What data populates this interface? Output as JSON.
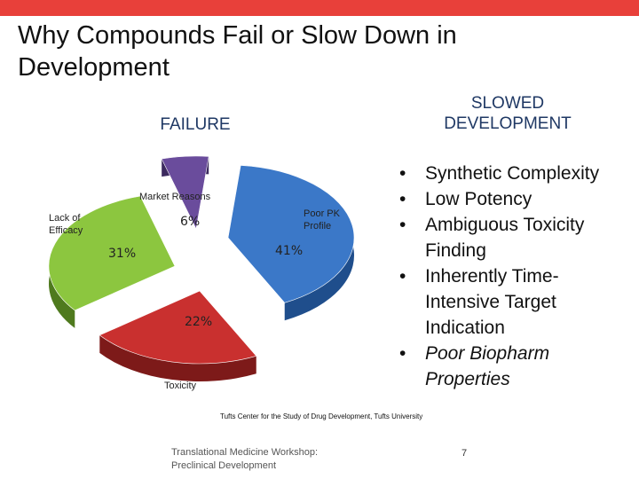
{
  "slide": {
    "title": "Why Compounds Fail or Slow Down in Development",
    "failure_heading": "FAILURE",
    "slowed_heading": "SLOWED DEVELOPMENT",
    "bullets": [
      {
        "text": "Synthetic Complexity",
        "italic": false
      },
      {
        "text": "Low Potency",
        "italic": false
      },
      {
        "text": "Ambiguous Toxicity Finding",
        "italic": false
      },
      {
        "text": "Inherently Time-Intensive Target Indication",
        "italic": false
      },
      {
        "text": "Poor Biopharm Properties",
        "italic": true
      }
    ],
    "bullet_glyph": "•",
    "source": "Tufts Center for the Study of Drug Development, Tufts University",
    "footer_line1": "Translational Medicine Workshop:",
    "footer_line2": "Preclinical Development",
    "page_number": "7",
    "accent_color": "#e8403a",
    "heading_color": "#1f3864"
  },
  "chart_data": {
    "type": "pie",
    "title": "",
    "slices": [
      {
        "label": "Poor PK Profile",
        "label_lines": [
          "Poor PK",
          "Profile"
        ],
        "value": 41,
        "value_label": "41%",
        "color": "#3b78c8",
        "dark": "#1f4e8c"
      },
      {
        "label": "Toxicity",
        "label_lines": [
          "Toxicity"
        ],
        "value": 22,
        "value_label": "22%",
        "color": "#c9302f",
        "dark": "#7d1a19"
      },
      {
        "label": "Lack of Efficacy",
        "label_lines": [
          "Lack of",
          "Efficacy"
        ],
        "value": 31,
        "value_label": "31%",
        "color": "#8cc63f",
        "dark": "#4f7a1e"
      },
      {
        "label": "Market Reasons",
        "label_lines": [
          "Market Reasons"
        ],
        "value": 6,
        "value_label": "6%",
        "color": "#6a4c9c",
        "dark": "#3c2a5e"
      }
    ]
  }
}
